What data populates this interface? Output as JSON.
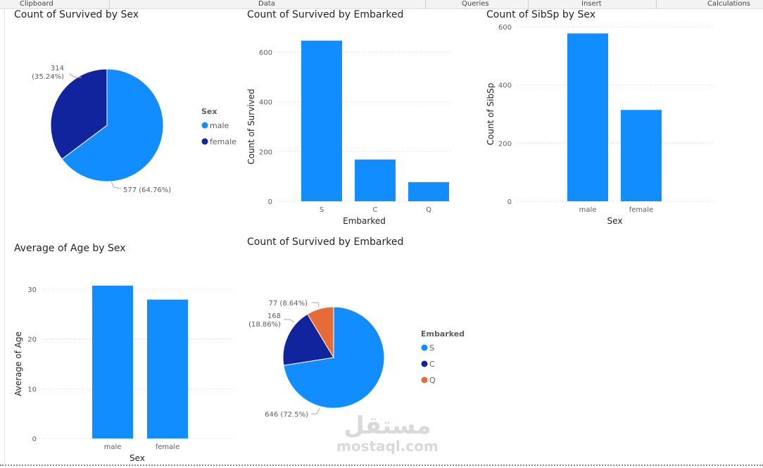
{
  "ribbon": [
    "Clipboard",
    "Data",
    "Queries",
    "Insert",
    "Calculations"
  ],
  "watermark": {
    "arabic": "مستقل",
    "latin": "mostaql.com"
  },
  "colors": {
    "blue": "#118dff",
    "navy": "#12239e",
    "orange": "#e66c37"
  },
  "chart_data": [
    {
      "type": "pie",
      "title": "Count of Survived by Sex",
      "legend_title": "Sex",
      "legend": "right",
      "slices": [
        {
          "label": "male",
          "value": 577,
          "pct": "64.76%",
          "text": "577 (64.76%)"
        },
        {
          "label": "female",
          "value": 314,
          "pct": "35.24%",
          "text": "314",
          "text2": "(35.24%)"
        }
      ]
    },
    {
      "type": "bar",
      "title": "Count of Survived by Embarked",
      "xlabel": "Embarked",
      "ylabel": "Count of Survived",
      "ylim": [
        0,
        600
      ],
      "yticks": [
        "0",
        "200",
        "400",
        "600"
      ],
      "categories": [
        "S",
        "C",
        "Q"
      ],
      "values": [
        646,
        168,
        77
      ]
    },
    {
      "type": "bar",
      "title": "Count of SibSp by Sex",
      "xlabel": "Sex",
      "ylabel": "Count of SibSp",
      "ylim": [
        0,
        600
      ],
      "yticks": [
        "0",
        "200",
        "400",
        "600"
      ],
      "categories": [
        "male",
        "female"
      ],
      "values": [
        577,
        314
      ]
    },
    {
      "type": "bar",
      "title": "Average of Age by Sex",
      "xlabel": "Sex",
      "ylabel": "Average of Age",
      "ylim": [
        0,
        30
      ],
      "yticks": [
        "0",
        "10",
        "20",
        "30"
      ],
      "categories": [
        "male",
        "female"
      ],
      "values": [
        30.73,
        27.92
      ]
    },
    {
      "type": "pie",
      "title": "Count of Survived by Embarked",
      "legend_title": "Embarked",
      "legend": "right",
      "slices": [
        {
          "label": "S",
          "value": 646,
          "pct": "72.5%",
          "text": "646 (72.5%)"
        },
        {
          "label": "C",
          "value": 168,
          "pct": "18.86%",
          "text": "168",
          "text2": "(18.86%)"
        },
        {
          "label": "Q",
          "value": 77,
          "pct": "8.64%",
          "text": "77 (8.64%)"
        }
      ]
    }
  ]
}
